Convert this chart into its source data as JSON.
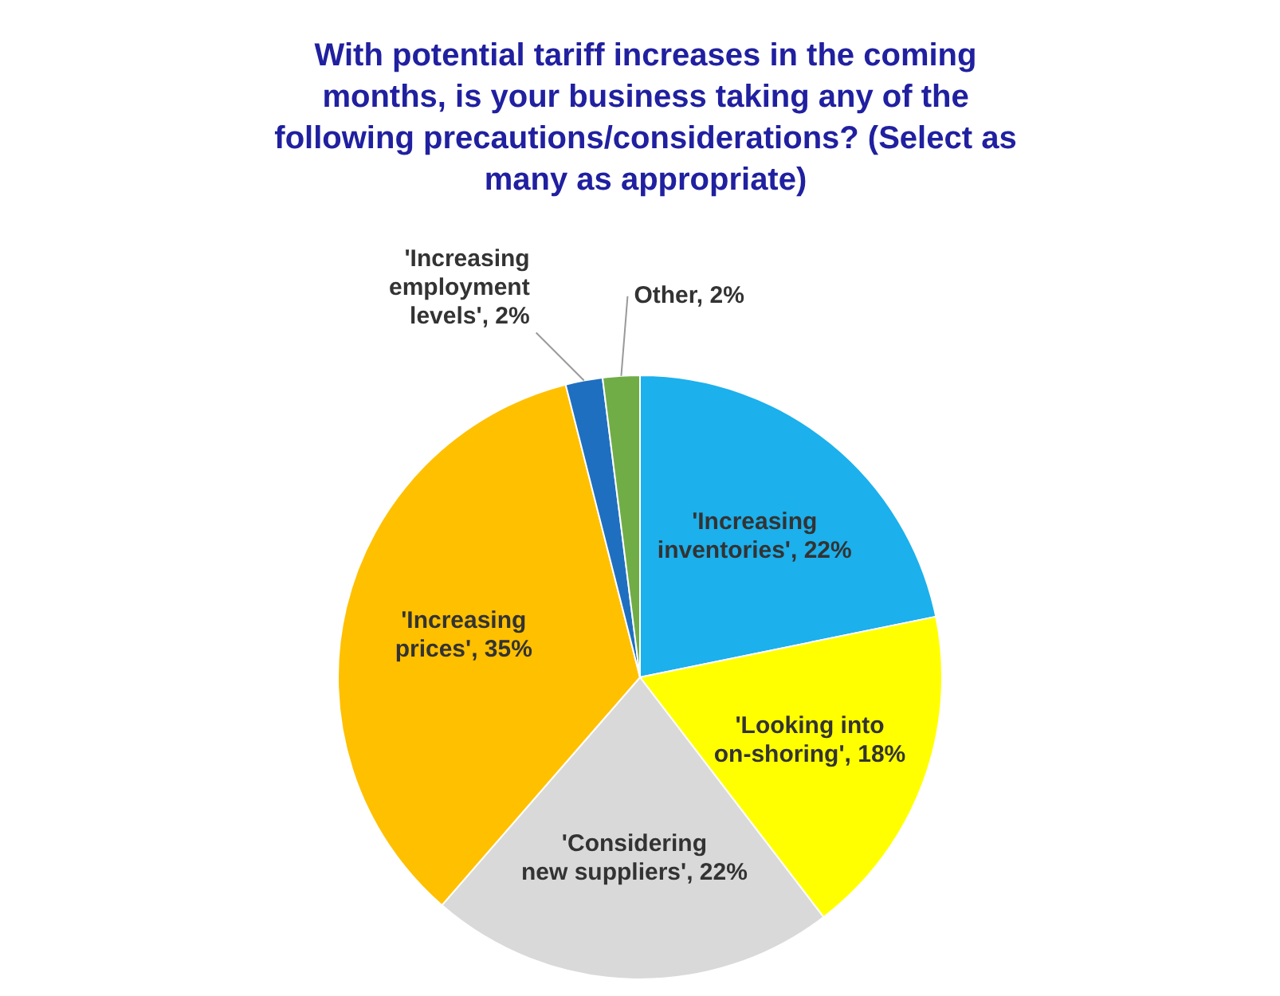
{
  "chart_data": {
    "type": "pie",
    "title": "With potential tariff increases in the coming months, is your business taking any of the following precautions/considerations? (Select as many as appropriate)",
    "categories": [
      "'Increasing inventories'",
      "'Looking into on-shoring'",
      "'Considering new suppliers'",
      "'Increasing prices'",
      "'Increasing employment levels'",
      "Other"
    ],
    "values": [
      22,
      18,
      22,
      35,
      2,
      2
    ],
    "colors": [
      "#1cb0ec",
      "#ffff00",
      "#d9d9d9",
      "#ffc000",
      "#1f6fc0",
      "#70ad47"
    ],
    "value_labels": [
      "22%",
      "18%",
      "22%",
      "35%",
      "2%",
      "2%"
    ],
    "legend": false
  }
}
